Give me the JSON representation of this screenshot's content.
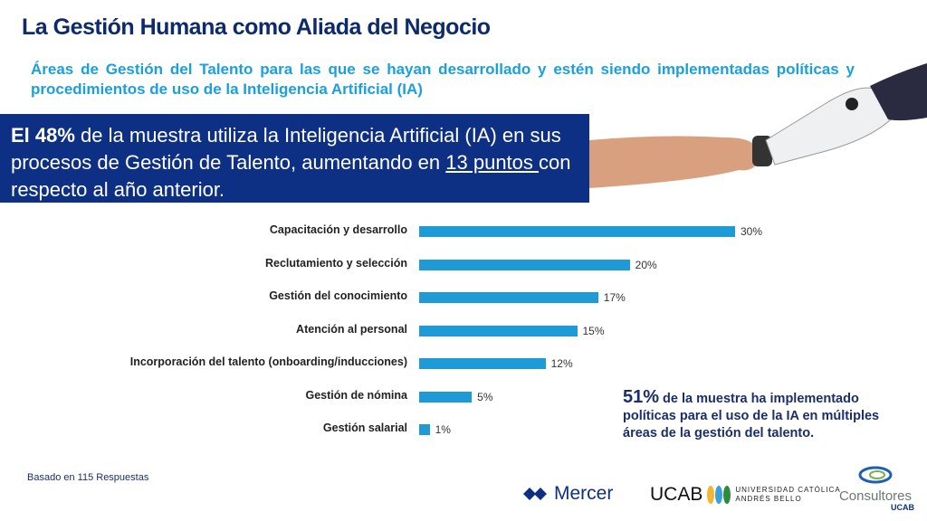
{
  "title": "La Gestión Humana como Aliada del Negocio",
  "subtitle": "Áreas de Gestión del Talento para las que se hayan desarrollado y estén siendo implementadas políticas y procedimientos de uso de la Inteligencia Artificial (IA)",
  "banner": {
    "lead": "El 48%",
    "text1": " de la muestra utiliza la Inteligencia Artificial (IA) en sus procesos de Gestión de Talento, aumentando en ",
    "underlined": "13 puntos ",
    "text2": "con respecto al año anterior."
  },
  "chart_data": {
    "type": "bar",
    "orientation": "horizontal",
    "categories": [
      "Capacitación y desarrollo",
      "Reclutamiento y selección",
      "Gestión del conocimiento",
      "Atención al personal",
      "Incorporación del talento (onboarding/inducciones)",
      "Gestión de nómina",
      "Gestión salarial"
    ],
    "values": [
      30,
      20,
      17,
      15,
      12,
      5,
      1
    ],
    "labels": [
      "30%",
      "20%",
      "17%",
      "15%",
      "12%",
      "5%",
      "1%"
    ],
    "color": "#1e9ad6",
    "grid": false
  },
  "note": {
    "big": "51%",
    "text": " de la muestra ha implementado políticas para el uso de la IA en múltiples áreas de la gestión del talento."
  },
  "footer": {
    "base": "Basado en 115 Respuestas"
  },
  "logos": {
    "mercer": "Mercer",
    "ucab": "UCAB",
    "ucab_sub1": "UNIVERSIDAD CATÓLICA",
    "ucab_sub2": "ANDRÉS BELLO",
    "consultores": "Consultores",
    "consultores_sub": "UCAB"
  },
  "colors": {
    "navy": "#0d2f84",
    "accent": "#1aa0dc"
  }
}
